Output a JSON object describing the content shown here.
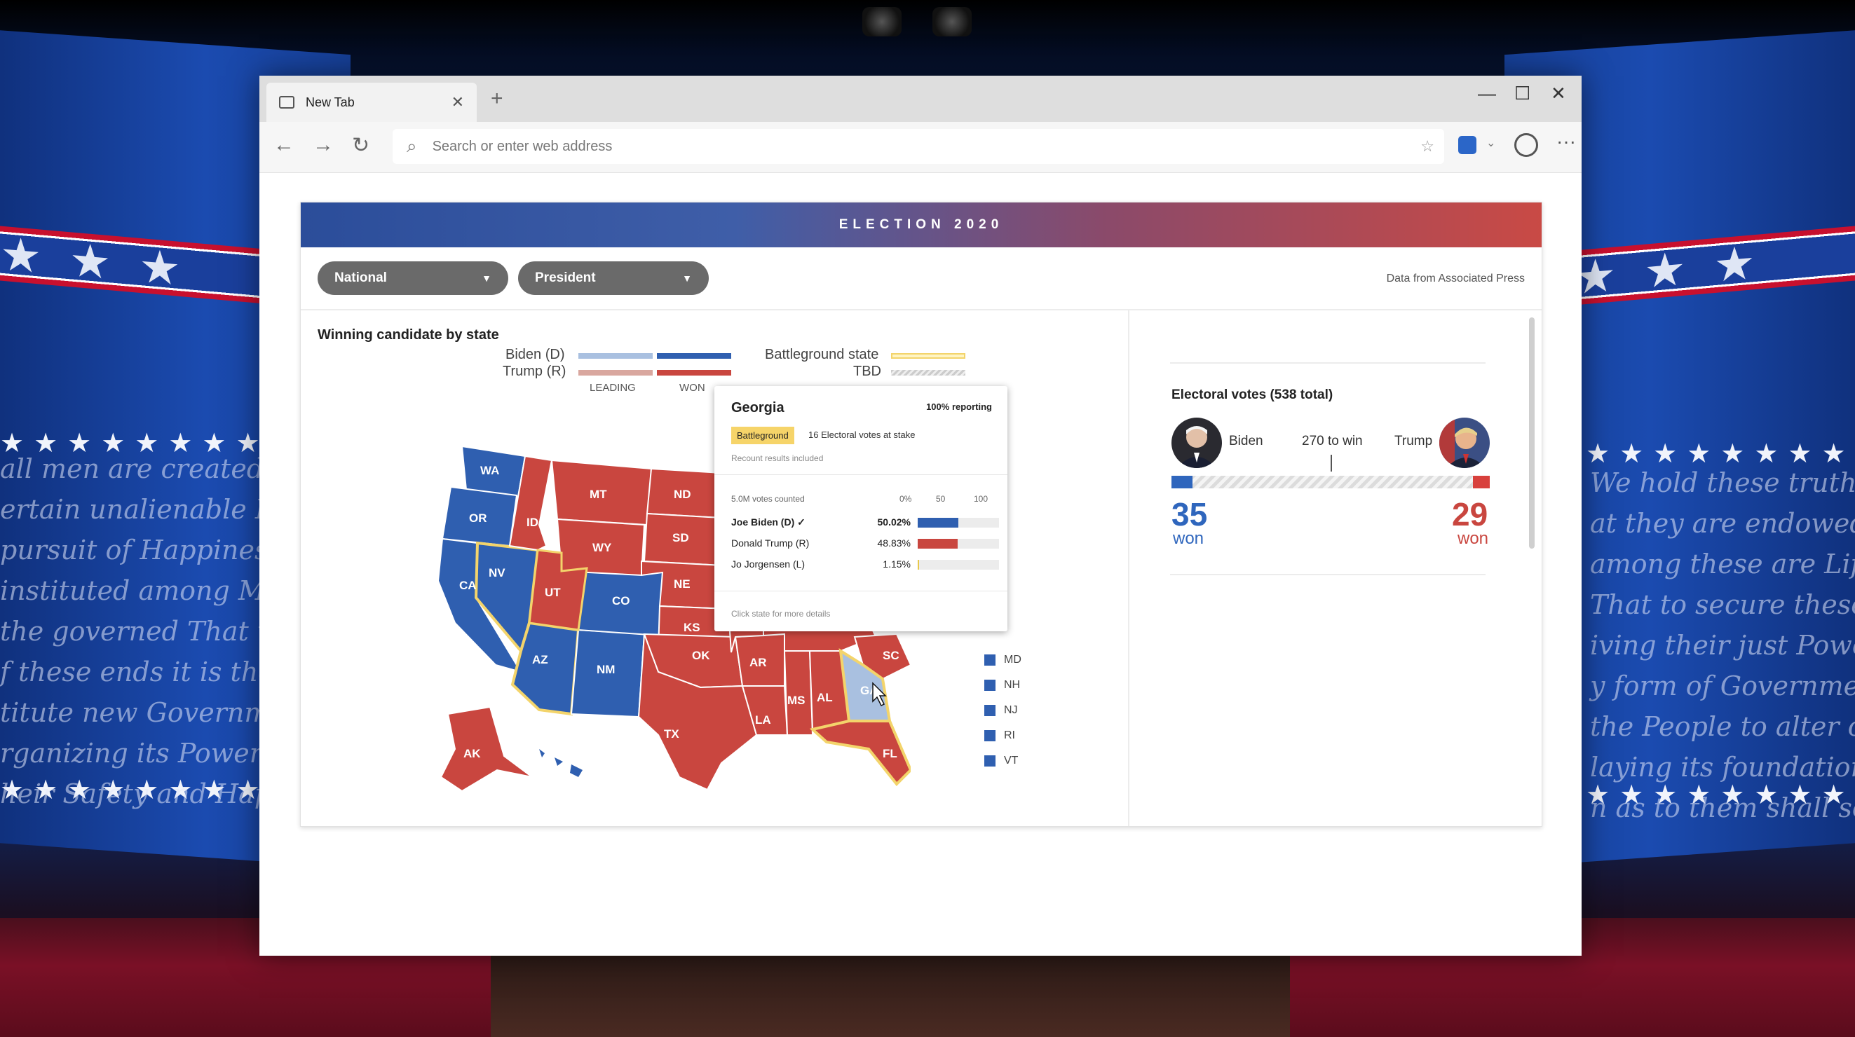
{
  "browser": {
    "tab_title": "New Tab",
    "new_tab": "+",
    "address_placeholder": "Search or enter web address",
    "window_controls": {
      "minimize": "—",
      "maximize": "☐",
      "close": "✕"
    }
  },
  "election": {
    "banner": "ELECTION 2020",
    "dropdown_region": "National",
    "dropdown_race": "President",
    "source": "Data from Associated Press",
    "map_title": "Winning candidate by state",
    "legend": {
      "biden": "Biden (D)",
      "trump": "Trump (R)",
      "leading": "LEADING",
      "won": "WON",
      "battleground": "Battleground state",
      "tbd": "TBD"
    },
    "colors": {
      "dem_won": "#2f5fb0",
      "dem_leading": "#a9c0e0",
      "rep_won": "#c9463f",
      "rep_leading": "#d9a79f",
      "battleground": "#f3d46b"
    },
    "small_states": [
      "MD",
      "NH",
      "NJ",
      "RI",
      "VT"
    ],
    "tooltip": {
      "state": "Georgia",
      "reporting": "100% reporting",
      "badge": "Battleground",
      "stake": "16 Electoral votes at stake",
      "recount": "Recount results included",
      "votes_counted": "5.0M votes counted",
      "axis": [
        "0%",
        "50",
        "100"
      ],
      "candidates": [
        {
          "name": "Joe Biden (D) ✓",
          "pct": "50.02%",
          "value": 50.02,
          "color": "#2f5fb0"
        },
        {
          "name": "Donald Trump (R)",
          "pct": "48.83%",
          "value": 48.83,
          "color": "#c9463f"
        },
        {
          "name": "Jo Jorgensen (L)",
          "pct": "1.15%",
          "value": 1.15,
          "color": "#e8c84a"
        }
      ],
      "footer": "Click state for more details"
    },
    "electoral": {
      "title": "Electoral votes (538 total)",
      "biden_label": "Biden",
      "trump_label": "Trump",
      "to_win": "270 to win",
      "biden_votes": "35",
      "trump_votes": "29",
      "won": "won",
      "total": 538
    }
  }
}
